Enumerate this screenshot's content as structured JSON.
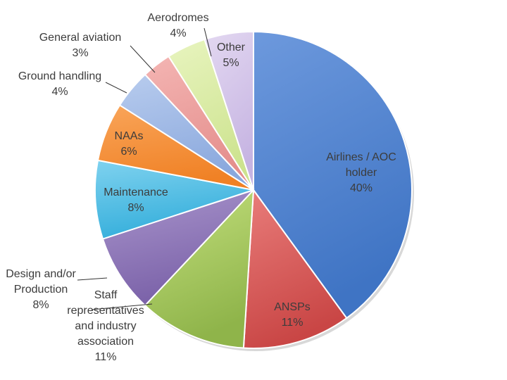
{
  "chart_data": {
    "type": "pie",
    "title": "",
    "slices": [
      {
        "lines": [
          "Airlines / AOC",
          "holder"
        ],
        "pct": "40%",
        "value": 40,
        "color": "#6d99dd",
        "dark": "#3f74c4"
      },
      {
        "lines": [
          "ANSPs"
        ],
        "pct": "11%",
        "value": 11,
        "color": "#e97d7b",
        "dark": "#c94645"
      },
      {
        "lines": [
          "Staff",
          "representatives",
          "and industry",
          "association"
        ],
        "pct": "11%",
        "value": 11,
        "color": "#c4e07e",
        "dark": "#8fb44a"
      },
      {
        "lines": [
          "Design and/or",
          "Production"
        ],
        "pct": "8%",
        "value": 8,
        "color": "#a995cc",
        "dark": "#7a61a8"
      },
      {
        "lines": [
          "Maintenance"
        ],
        "pct": "8%",
        "value": 8,
        "color": "#7fd2ef",
        "dark": "#34aedb"
      },
      {
        "lines": [
          "NAAs"
        ],
        "pct": "6%",
        "value": 6,
        "color": "#f9a55a",
        "dark": "#f08125"
      },
      {
        "lines": [
          "Ground handling"
        ],
        "pct": "4%",
        "value": 4,
        "color": "#b8ccee",
        "dark": "#8aa8dd"
      },
      {
        "lines": [
          "General aviation"
        ],
        "pct": "3%",
        "value": 3,
        "color": "#f4b5b3",
        "dark": "#e48e8c"
      },
      {
        "lines": [
          "Aerodromes"
        ],
        "pct": "4%",
        "value": 4,
        "color": "#e8f4bf",
        "dark": "#cde38f"
      },
      {
        "lines": [
          "Other"
        ],
        "pct": "5%",
        "value": 5,
        "color": "#e3d8f1",
        "dark": "#c6b4e2"
      }
    ]
  }
}
